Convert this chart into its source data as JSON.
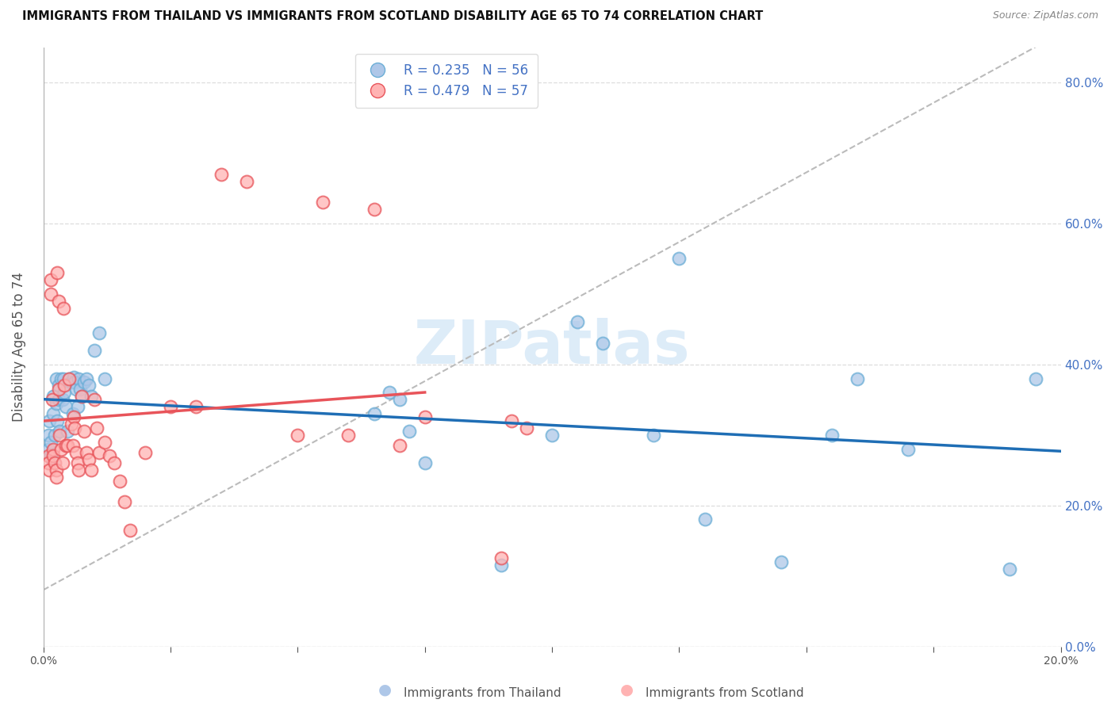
{
  "title": "IMMIGRANTS FROM THAILAND VS IMMIGRANTS FROM SCOTLAND DISABILITY AGE 65 TO 74 CORRELATION CHART",
  "source": "Source: ZipAtlas.com",
  "ylabel": "Disability Age 65 to 74",
  "xlim": [
    0.0,
    0.2
  ],
  "ylim": [
    0.0,
    0.85
  ],
  "yticks": [
    0.0,
    0.2,
    0.4,
    0.6,
    0.8
  ],
  "xtick_positions": [
    0.0,
    0.025,
    0.05,
    0.075,
    0.1,
    0.125,
    0.15,
    0.175,
    0.2
  ],
  "thailand_color_face": "#aec7e8",
  "thailand_color_edge": "#6baed6",
  "scotland_color_face": "#ffb3b3",
  "scotland_color_edge": "#e8545a",
  "trend_blue": "#1f6eb5",
  "trend_pink": "#e8545a",
  "ref_line_color": "#bbbbbb",
  "watermark": "ZIPatlas",
  "watermark_color": "#daeaf8",
  "grid_color": "#dddddd",
  "right_axis_color": "#4472c4",
  "title_color": "#111111",
  "source_color": "#888888",
  "label_color": "#555555",
  "thailand_R": 0.235,
  "thailand_N": 56,
  "scotland_R": 0.479,
  "scotland_N": 57,
  "thailand_x": [
    0.001,
    0.001,
    0.0012,
    0.0015,
    0.0015,
    0.0018,
    0.002,
    0.002,
    0.0022,
    0.0025,
    0.0025,
    0.0028,
    0.003,
    0.003,
    0.0032,
    0.0035,
    0.0038,
    0.004,
    0.0042,
    0.0045,
    0.0048,
    0.005,
    0.0055,
    0.0058,
    0.006,
    0.0062,
    0.0065,
    0.0068,
    0.007,
    0.0072,
    0.0075,
    0.008,
    0.0085,
    0.009,
    0.0095,
    0.01,
    0.011,
    0.012,
    0.065,
    0.068,
    0.07,
    0.072,
    0.075,
    0.09,
    0.1,
    0.105,
    0.11,
    0.12,
    0.125,
    0.13,
    0.145,
    0.155,
    0.16,
    0.17,
    0.19,
    0.195
  ],
  "thailand_y": [
    0.3,
    0.28,
    0.32,
    0.29,
    0.27,
    0.265,
    0.355,
    0.33,
    0.3,
    0.38,
    0.345,
    0.32,
    0.37,
    0.35,
    0.305,
    0.38,
    0.35,
    0.38,
    0.36,
    0.34,
    0.305,
    0.38,
    0.375,
    0.33,
    0.382,
    0.375,
    0.365,
    0.34,
    0.38,
    0.365,
    0.355,
    0.375,
    0.38,
    0.37,
    0.355,
    0.42,
    0.445,
    0.38,
    0.33,
    0.36,
    0.35,
    0.305,
    0.26,
    0.115,
    0.3,
    0.46,
    0.43,
    0.3,
    0.55,
    0.18,
    0.12,
    0.3,
    0.38,
    0.28,
    0.11,
    0.38
  ],
  "scotland_x": [
    0.001,
    0.001,
    0.0012,
    0.0015,
    0.0015,
    0.0018,
    0.002,
    0.002,
    0.0022,
    0.0025,
    0.0025,
    0.0028,
    0.003,
    0.003,
    0.0032,
    0.0035,
    0.0038,
    0.004,
    0.0042,
    0.0045,
    0.0048,
    0.005,
    0.0055,
    0.0058,
    0.006,
    0.0062,
    0.0065,
    0.0068,
    0.007,
    0.0075,
    0.008,
    0.0085,
    0.009,
    0.0095,
    0.01,
    0.0105,
    0.011,
    0.012,
    0.013,
    0.014,
    0.015,
    0.016,
    0.017,
    0.02,
    0.025,
    0.03,
    0.035,
    0.04,
    0.05,
    0.055,
    0.06,
    0.065,
    0.07,
    0.075,
    0.09,
    0.092,
    0.095
  ],
  "scotland_y": [
    0.27,
    0.26,
    0.25,
    0.52,
    0.5,
    0.35,
    0.28,
    0.27,
    0.26,
    0.25,
    0.24,
    0.53,
    0.49,
    0.365,
    0.3,
    0.28,
    0.26,
    0.48,
    0.37,
    0.285,
    0.285,
    0.38,
    0.315,
    0.285,
    0.325,
    0.31,
    0.275,
    0.26,
    0.25,
    0.355,
    0.305,
    0.275,
    0.265,
    0.25,
    0.35,
    0.31,
    0.275,
    0.29,
    0.27,
    0.26,
    0.235,
    0.205,
    0.165,
    0.275,
    0.34,
    0.34,
    0.67,
    0.66,
    0.3,
    0.63,
    0.3,
    0.62,
    0.285,
    0.325,
    0.125,
    0.32,
    0.31
  ]
}
